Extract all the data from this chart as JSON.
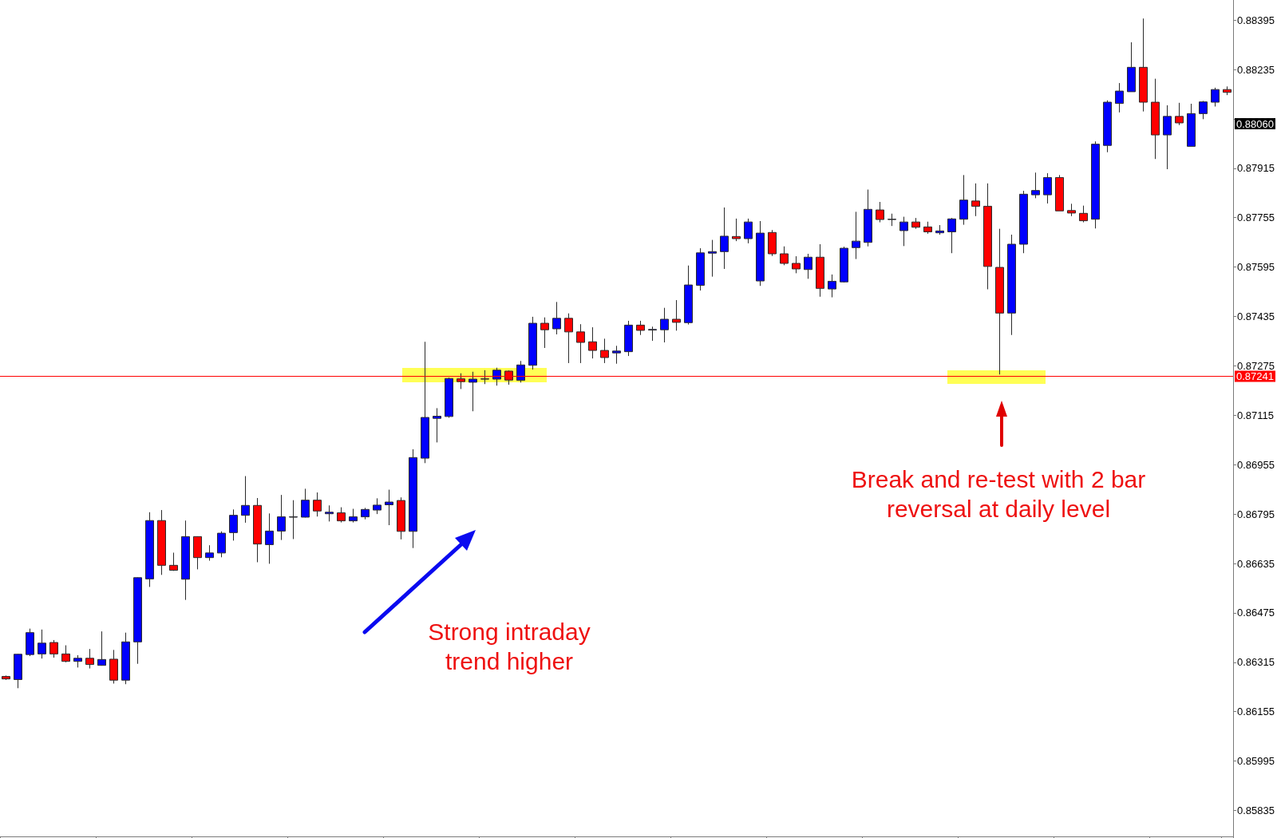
{
  "chart_data": {
    "type": "candlestick",
    "categories": [
      null,
      null,
      null,
      null,
      null,
      null,
      null,
      null,
      null,
      null,
      null,
      null,
      null,
      null,
      null,
      null,
      null,
      null,
      null,
      null,
      null,
      null,
      null,
      null,
      null,
      null,
      null,
      null,
      null,
      null,
      null,
      null,
      null,
      null,
      null,
      null,
      null,
      null,
      null,
      null,
      null,
      null,
      null,
      null,
      null,
      null,
      null,
      null,
      null,
      null,
      null,
      null,
      null,
      null,
      null,
      null,
      null,
      null,
      null,
      null,
      null,
      null,
      null,
      null,
      null,
      null,
      null,
      null,
      null,
      null,
      null,
      null,
      null,
      null,
      null,
      null,
      null,
      null,
      null,
      null,
      null,
      null,
      null,
      null,
      null,
      null,
      null,
      null,
      null,
      null,
      null,
      null,
      null,
      null,
      null,
      null,
      null,
      null,
      null,
      null,
      null,
      null,
      null
    ],
    "ohlc": [
      [
        0.86269,
        0.86272,
        0.86258,
        0.86261
      ],
      [
        0.86259,
        0.86342,
        0.86231,
        0.86341
      ],
      [
        0.8634,
        0.86424,
        0.86335,
        0.86411
      ],
      [
        0.86342,
        0.86421,
        0.86327,
        0.86377
      ],
      [
        0.86379,
        0.86387,
        0.8633,
        0.86342
      ],
      [
        0.86342,
        0.8637,
        0.86315,
        0.86318
      ],
      [
        0.86318,
        0.86338,
        0.86298,
        0.86328
      ],
      [
        0.86328,
        0.86358,
        0.86295,
        0.86308
      ],
      [
        0.86305,
        0.86415,
        0.86304,
        0.86324
      ],
      [
        0.86325,
        0.86355,
        0.86246,
        0.86257
      ],
      [
        0.86257,
        0.86411,
        0.86244,
        0.86381
      ],
      [
        0.86381,
        0.8659,
        0.8631,
        0.86589
      ],
      [
        0.86585,
        0.86801,
        0.86559,
        0.86774
      ],
      [
        0.86774,
        0.86808,
        0.86598,
        0.86629
      ],
      [
        0.86629,
        0.8667,
        0.86611,
        0.86613
      ],
      [
        0.86584,
        0.86774,
        0.86517,
        0.86722
      ],
      [
        0.86722,
        0.86723,
        0.86616,
        0.86654
      ],
      [
        0.86654,
        0.86694,
        0.86644,
        0.86669
      ],
      [
        0.86669,
        0.86739,
        0.86655,
        0.86733
      ],
      [
        0.86735,
        0.8681,
        0.86709,
        0.86791
      ],
      [
        0.86791,
        0.86918,
        0.86767,
        0.86823
      ],
      [
        0.86823,
        0.86847,
        0.86639,
        0.86698
      ],
      [
        0.86696,
        0.86797,
        0.86634,
        0.8674
      ],
      [
        0.8674,
        0.86857,
        0.86711,
        0.86786
      ],
      [
        0.86785,
        0.8684,
        0.86714,
        0.86786
      ],
      [
        0.86785,
        0.86877,
        0.86784,
        0.8684
      ],
      [
        0.8684,
        0.86865,
        0.86787,
        0.86805
      ],
      [
        0.86796,
        0.86823,
        0.86771,
        0.86801
      ],
      [
        0.86799,
        0.86817,
        0.86768,
        0.86773
      ],
      [
        0.86773,
        0.86812,
        0.86768,
        0.86786
      ],
      [
        0.86786,
        0.86815,
        0.86778,
        0.8681
      ],
      [
        0.86808,
        0.86846,
        0.86795,
        0.86824
      ],
      [
        0.86825,
        0.86874,
        0.86759,
        0.86834
      ],
      [
        0.86839,
        0.86849,
        0.86713,
        0.86739
      ],
      [
        0.86739,
        0.87005,
        0.86685,
        0.86978
      ],
      [
        0.86976,
        0.87353,
        0.8696,
        0.87108
      ],
      [
        0.87105,
        0.87138,
        0.87027,
        0.87112
      ],
      [
        0.87111,
        0.87237,
        0.87107,
        0.87234
      ],
      [
        0.87233,
        0.87251,
        0.872,
        0.87224
      ],
      [
        0.87222,
        0.87256,
        0.87128,
        0.87232
      ],
      [
        0.87232,
        0.87261,
        0.87216,
        0.87233
      ],
      [
        0.87232,
        0.87269,
        0.87211,
        0.87261
      ],
      [
        0.87258,
        0.8726,
        0.87214,
        0.87229
      ],
      [
        0.87228,
        0.87291,
        0.87221,
        0.87278
      ],
      [
        0.87277,
        0.87434,
        0.87263,
        0.87413
      ],
      [
        0.87413,
        0.87432,
        0.87333,
        0.87392
      ],
      [
        0.87395,
        0.87482,
        0.87377,
        0.87429
      ],
      [
        0.87429,
        0.87445,
        0.87284,
        0.87385
      ],
      [
        0.87385,
        0.8741,
        0.87284,
        0.87351
      ],
      [
        0.87353,
        0.874,
        0.87299,
        0.87325
      ],
      [
        0.87325,
        0.87363,
        0.87284,
        0.87302
      ],
      [
        0.87317,
        0.8734,
        0.87282,
        0.87323
      ],
      [
        0.87321,
        0.87421,
        0.87307,
        0.87407
      ],
      [
        0.87407,
        0.87421,
        0.87375,
        0.8739
      ],
      [
        0.87391,
        0.87402,
        0.87356,
        0.87393
      ],
      [
        0.87392,
        0.87463,
        0.87351,
        0.87426
      ],
      [
        0.87426,
        0.87488,
        0.87389,
        0.87416
      ],
      [
        0.87415,
        0.876,
        0.87409,
        0.87537
      ],
      [
        0.87536,
        0.87656,
        0.87519,
        0.87641
      ],
      [
        0.8764,
        0.87683,
        0.87564,
        0.87645
      ],
      [
        0.87645,
        0.87788,
        0.87589,
        0.87695
      ],
      [
        0.87694,
        0.87752,
        0.87679,
        0.87687
      ],
      [
        0.87687,
        0.87752,
        0.87672,
        0.87741
      ],
      [
        0.8755,
        0.87744,
        0.87534,
        0.87705
      ],
      [
        0.87707,
        0.87715,
        0.87631,
        0.87638
      ],
      [
        0.87638,
        0.87662,
        0.87601,
        0.87607
      ],
      [
        0.87607,
        0.8763,
        0.87575,
        0.87589
      ],
      [
        0.87587,
        0.87638,
        0.87557,
        0.87627
      ],
      [
        0.87627,
        0.87669,
        0.87499,
        0.87526
      ],
      [
        0.87524,
        0.87571,
        0.87497,
        0.87549
      ],
      [
        0.87547,
        0.87661,
        0.87545,
        0.87656
      ],
      [
        0.87658,
        0.87774,
        0.87621,
        0.87679
      ],
      [
        0.87675,
        0.87846,
        0.87662,
        0.87782
      ],
      [
        0.8778,
        0.87806,
        0.8774,
        0.87749
      ],
      [
        0.87749,
        0.87768,
        0.87728,
        0.8775
      ],
      [
        0.87713,
        0.87758,
        0.87663,
        0.87741
      ],
      [
        0.87741,
        0.87754,
        0.87719,
        0.87724
      ],
      [
        0.87725,
        0.87742,
        0.87703,
        0.87709
      ],
      [
        0.87706,
        0.87731,
        0.877,
        0.87712
      ],
      [
        0.87709,
        0.87754,
        0.8764,
        0.87751
      ],
      [
        0.8775,
        0.87893,
        0.87732,
        0.87812
      ],
      [
        0.87809,
        0.87866,
        0.8776,
        0.87792
      ],
      [
        0.87792,
        0.87866,
        0.87523,
        0.87597
      ],
      [
        0.87594,
        0.87719,
        0.87247,
        0.87446
      ],
      [
        0.87446,
        0.877,
        0.87375,
        0.87669
      ],
      [
        0.87669,
        0.87842,
        0.8764,
        0.87831
      ],
      [
        0.87829,
        0.87901,
        0.87818,
        0.87843
      ],
      [
        0.87829,
        0.87899,
        0.87801,
        0.87885
      ],
      [
        0.87885,
        0.87893,
        0.87777,
        0.87777
      ],
      [
        0.87778,
        0.878,
        0.8776,
        0.8777
      ],
      [
        0.87769,
        0.87794,
        0.8774,
        0.87745
      ],
      [
        0.8775,
        0.88002,
        0.8772,
        0.87993
      ],
      [
        0.87989,
        0.88135,
        0.87967,
        0.88129
      ],
      [
        0.88125,
        0.88191,
        0.88096,
        0.88165
      ],
      [
        0.88163,
        0.88323,
        0.88163,
        0.88242
      ],
      [
        0.88242,
        0.884,
        0.88099,
        0.88129
      ],
      [
        0.88129,
        0.88205,
        0.87945,
        0.88023
      ],
      [
        0.88023,
        0.88119,
        0.87912,
        0.88083
      ],
      [
        0.88083,
        0.88127,
        0.88055,
        0.88062
      ],
      [
        0.87986,
        0.88124,
        0.87986,
        0.88092
      ],
      [
        0.88092,
        0.88133,
        0.88074,
        0.8813
      ],
      [
        0.88129,
        0.88176,
        0.88115,
        0.8817
      ],
      [
        0.8817,
        0.8818,
        0.88152,
        0.88161
      ]
    ],
    "colors": [
      "#ff0000",
      "#0000ff",
      "#0000ff",
      "#0000ff",
      "#ff0000",
      "#ff0000",
      "#0000ff",
      "#ff0000",
      "#0000ff",
      "#ff0000",
      "#0000ff",
      "#0000ff",
      "#0000ff",
      "#ff0000",
      "#ff0000",
      "#0000ff",
      "#ff0000",
      "#0000ff",
      "#0000ff",
      "#0000ff",
      "#0000ff",
      "#ff0000",
      "#0000ff",
      "#0000ff",
      "#0000ff",
      "#0000ff",
      "#ff0000",
      "#0000ff",
      "#ff0000",
      "#0000ff",
      "#0000ff",
      "#0000ff",
      "#0000ff",
      "#ff0000",
      "#0000ff",
      "#0000ff",
      "#0000ff",
      "#0000ff",
      "#ff0000",
      "#0000ff",
      "#0000ff",
      "#0000ff",
      "#ff0000",
      "#0000ff",
      "#0000ff",
      "#ff0000",
      "#0000ff",
      "#ff0000",
      "#ff0000",
      "#ff0000",
      "#ff0000",
      "#0000ff",
      "#0000ff",
      "#ff0000",
      "#0000ff",
      "#0000ff",
      "#ff0000",
      "#0000ff",
      "#0000ff",
      "#0000ff",
      "#0000ff",
      "#ff0000",
      "#0000ff",
      "#0000ff",
      "#ff0000",
      "#ff0000",
      "#ff0000",
      "#0000ff",
      "#ff0000",
      "#0000ff",
      "#0000ff",
      "#0000ff",
      "#0000ff",
      "#ff0000",
      "#0000ff",
      "#0000ff",
      "#ff0000",
      "#ff0000",
      "#0000ff",
      "#0000ff",
      "#0000ff",
      "#ff0000",
      "#ff0000",
      "#ff0000",
      "#0000ff",
      "#0000ff",
      "#0000ff",
      "#0000ff",
      "#ff0000",
      "#ff0000",
      "#ff0000",
      "#0000ff",
      "#0000ff",
      "#0000ff",
      "#0000ff",
      "#ff0000",
      "#ff0000",
      "#0000ff",
      "#ff0000",
      "#0000ff",
      "#0000ff",
      "#0000ff",
      "#ff0000"
    ],
    "ylim": [
      0.85751,
      0.8846
    ],
    "yticks": [
      0.85835,
      0.85995,
      0.86155,
      0.86315,
      0.86475,
      0.86635,
      0.86795,
      0.86955,
      0.87115,
      0.87275,
      0.87435,
      0.87595,
      0.87755,
      0.87915,
      {
        "value": 0.88075,
        "label": null
      },
      0.88235,
      0.88395
    ],
    "tick_labels": "y",
    "ref_lines": [
      {
        "axis": "y",
        "value": 0.87241,
        "label": "0.87241",
        "color": "#ff0000"
      }
    ],
    "annotations": [
      "Strong intraday\ntrend higher",
      "Break and re-test with 2 bar\nreversal at daily level",
      "0.88060"
    ]
  }
}
